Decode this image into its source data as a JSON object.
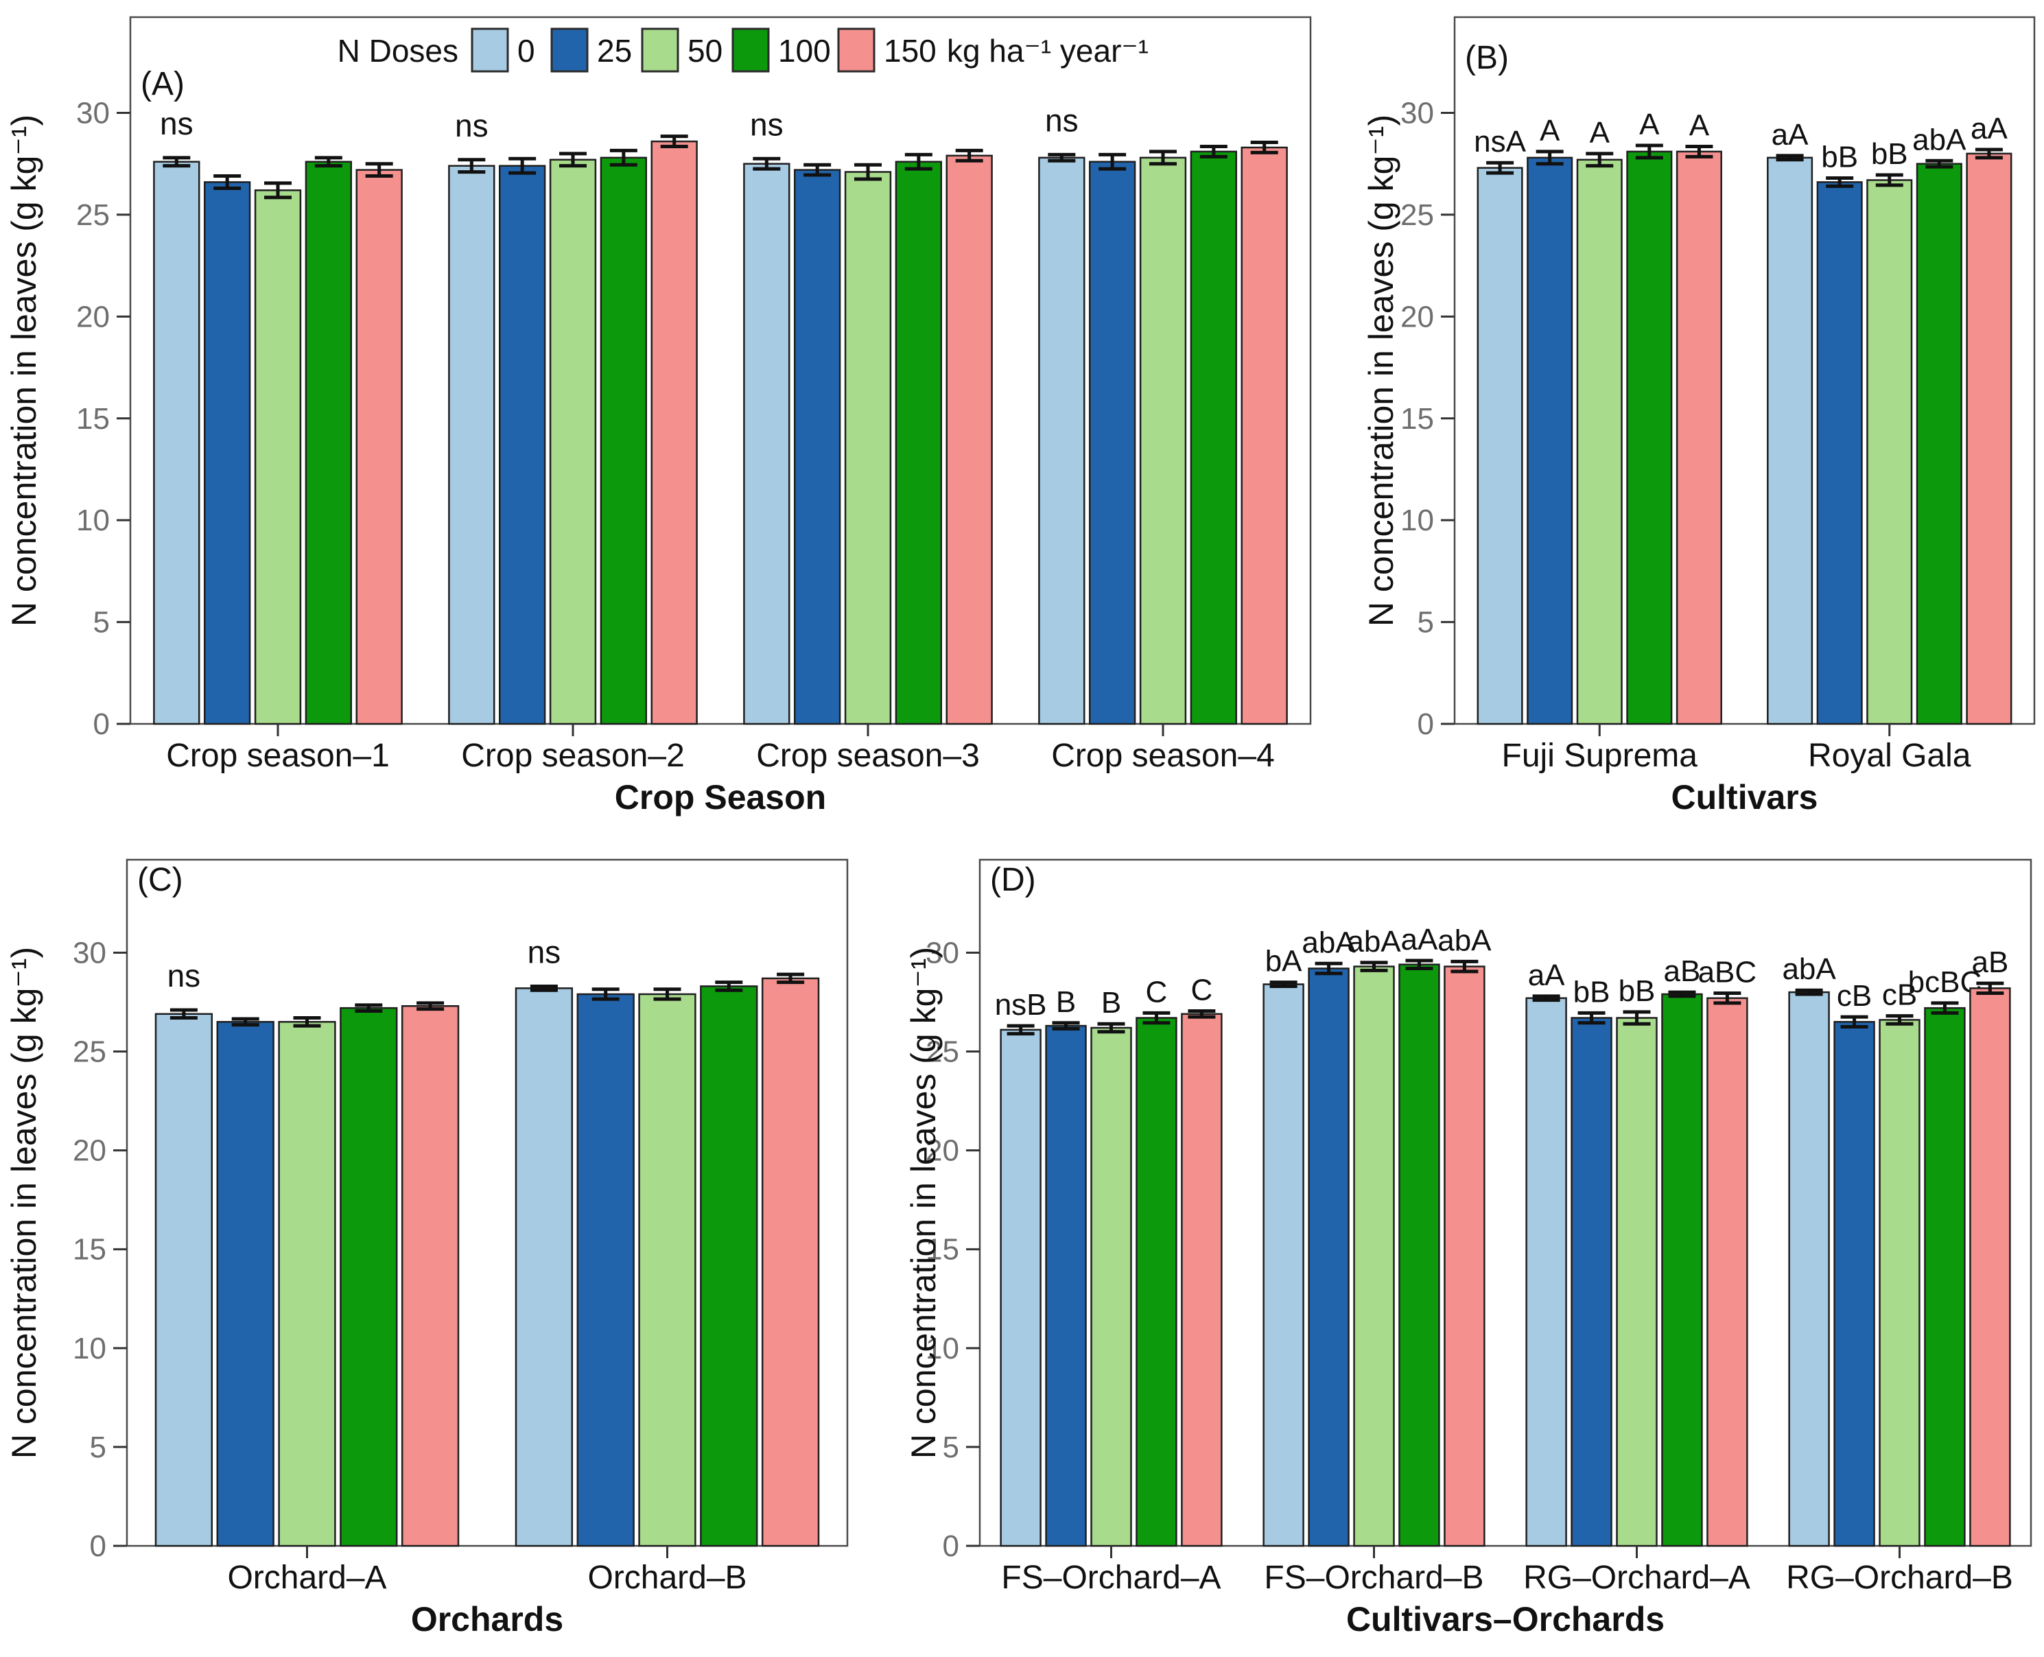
{
  "legend": {
    "title": "N Doses",
    "unit_suffix": "kg ha⁻¹ year⁻¹",
    "entries": [
      {
        "label": "0",
        "color": "#A6CBE3"
      },
      {
        "label": "25",
        "color": "#2264AC"
      },
      {
        "label": "50",
        "color": "#A8DB8C"
      },
      {
        "label": "100",
        "color": "#0C9A0C"
      },
      {
        "label": "150",
        "color": "#F4918F"
      }
    ]
  },
  "axis_colors": {
    "tick_label": "#6e6e6e",
    "text": "#111111",
    "frame": "#4a4a4a"
  },
  "chart_data": [
    {
      "type": "bar",
      "panel_label": "(A)",
      "xlabel": "Crop Season",
      "ylabel": "N concentration in leaves (g kg⁻¹)",
      "yticks": [
        0,
        5,
        10,
        15,
        20,
        25,
        30
      ],
      "ylim": [
        0,
        34.7
      ],
      "categories": [
        "Crop season–1",
        "Crop season–2",
        "Crop season–3",
        "Crop season–4"
      ],
      "series": [
        {
          "name": "0",
          "values": [
            27.6,
            27.4,
            27.5,
            27.8
          ],
          "errors": [
            0.2,
            0.3,
            0.25,
            0.15
          ]
        },
        {
          "name": "25",
          "values": [
            26.6,
            27.4,
            27.2,
            27.6
          ],
          "errors": [
            0.3,
            0.35,
            0.25,
            0.35
          ]
        },
        {
          "name": "50",
          "values": [
            26.2,
            27.7,
            27.1,
            27.8
          ],
          "errors": [
            0.35,
            0.3,
            0.35,
            0.3
          ]
        },
        {
          "name": "100",
          "values": [
            27.6,
            27.8,
            27.6,
            28.1
          ],
          "errors": [
            0.2,
            0.35,
            0.35,
            0.25
          ]
        },
        {
          "name": "150",
          "values": [
            27.2,
            28.6,
            27.9,
            28.3
          ],
          "errors": [
            0.3,
            0.25,
            0.25,
            0.25
          ]
        }
      ],
      "annotation_mode": "group",
      "annotations": [
        "ns",
        "ns",
        "ns",
        "ns"
      ],
      "show_legend": true
    },
    {
      "type": "bar",
      "panel_label": "(B)",
      "xlabel": "Cultivars",
      "ylabel": "N concentration in leaves (g kg⁻¹)",
      "yticks": [
        0,
        5,
        10,
        15,
        20,
        25,
        30
      ],
      "ylim": [
        0,
        34.7
      ],
      "categories": [
        "Fuji Suprema",
        "Royal Gala"
      ],
      "series": [
        {
          "name": "0",
          "values": [
            27.3,
            27.8
          ],
          "errors": [
            0.25,
            0.1
          ]
        },
        {
          "name": "25",
          "values": [
            27.8,
            26.6
          ],
          "errors": [
            0.3,
            0.2
          ]
        },
        {
          "name": "50",
          "values": [
            27.7,
            26.7
          ],
          "errors": [
            0.3,
            0.25
          ]
        },
        {
          "name": "100",
          "values": [
            28.1,
            27.5
          ],
          "errors": [
            0.3,
            0.15
          ]
        },
        {
          "name": "150",
          "values": [
            28.1,
            28.0
          ],
          "errors": [
            0.25,
            0.2
          ]
        }
      ],
      "annotation_mode": "per_bar",
      "annotations": [
        [
          "nsA",
          "A",
          "A",
          "A",
          "A"
        ],
        [
          "aA",
          "bB",
          "bB",
          "abA",
          "aA"
        ]
      ],
      "show_legend": false
    },
    {
      "type": "bar",
      "panel_label": "(C)",
      "xlabel": "Orchards",
      "ylabel": "N concentration in leaves (g kg⁻¹)",
      "yticks": [
        0,
        5,
        10,
        15,
        20,
        25,
        30
      ],
      "ylim": [
        0,
        34.7
      ],
      "categories": [
        "Orchard–A",
        "Orchard–B"
      ],
      "series": [
        {
          "name": "0",
          "values": [
            26.9,
            28.2
          ],
          "errors": [
            0.2,
            0.1
          ]
        },
        {
          "name": "25",
          "values": [
            26.5,
            27.9
          ],
          "errors": [
            0.15,
            0.25
          ]
        },
        {
          "name": "50",
          "values": [
            26.5,
            27.9
          ],
          "errors": [
            0.2,
            0.25
          ]
        },
        {
          "name": "100",
          "values": [
            27.2,
            28.3
          ],
          "errors": [
            0.15,
            0.2
          ]
        },
        {
          "name": "150",
          "values": [
            27.3,
            28.7
          ],
          "errors": [
            0.15,
            0.2
          ]
        }
      ],
      "annotation_mode": "group",
      "annotations": [
        "ns",
        "ns"
      ],
      "show_legend": false
    },
    {
      "type": "bar",
      "panel_label": "(D)",
      "xlabel": "Cultivars–Orchards",
      "ylabel": "N concentration in leaves (g kg⁻¹)",
      "yticks": [
        0,
        5,
        10,
        15,
        20,
        25,
        30
      ],
      "ylim": [
        0,
        34.7
      ],
      "categories": [
        "FS–Orchard–A",
        "FS–Orchard–B",
        "RG–Orchard–A",
        "RG–Orchard–B"
      ],
      "series": [
        {
          "name": "0",
          "values": [
            26.1,
            28.4,
            27.7,
            28.0
          ],
          "errors": [
            0.2,
            0.1,
            0.1,
            0.1
          ]
        },
        {
          "name": "25",
          "values": [
            26.3,
            29.2,
            26.7,
            26.5
          ],
          "errors": [
            0.15,
            0.25,
            0.25,
            0.25
          ]
        },
        {
          "name": "50",
          "values": [
            26.2,
            29.3,
            26.7,
            26.6
          ],
          "errors": [
            0.2,
            0.2,
            0.3,
            0.2
          ]
        },
        {
          "name": "100",
          "values": [
            26.7,
            29.4,
            27.9,
            27.2
          ],
          "errors": [
            0.25,
            0.2,
            0.1,
            0.25
          ]
        },
        {
          "name": "150",
          "values": [
            26.9,
            29.3,
            27.7,
            28.2
          ],
          "errors": [
            0.15,
            0.25,
            0.25,
            0.25
          ]
        }
      ],
      "annotation_mode": "per_bar",
      "annotations": [
        [
          "nsB",
          "B",
          "B",
          "C",
          "C"
        ],
        [
          "bA",
          "abA",
          "abA",
          "aA",
          "abA"
        ],
        [
          "aA",
          "bB",
          "bB",
          "aB",
          "aBC"
        ],
        [
          "abA",
          "cB",
          "cB",
          "bcBC",
          "aB"
        ]
      ],
      "show_legend": false
    }
  ]
}
